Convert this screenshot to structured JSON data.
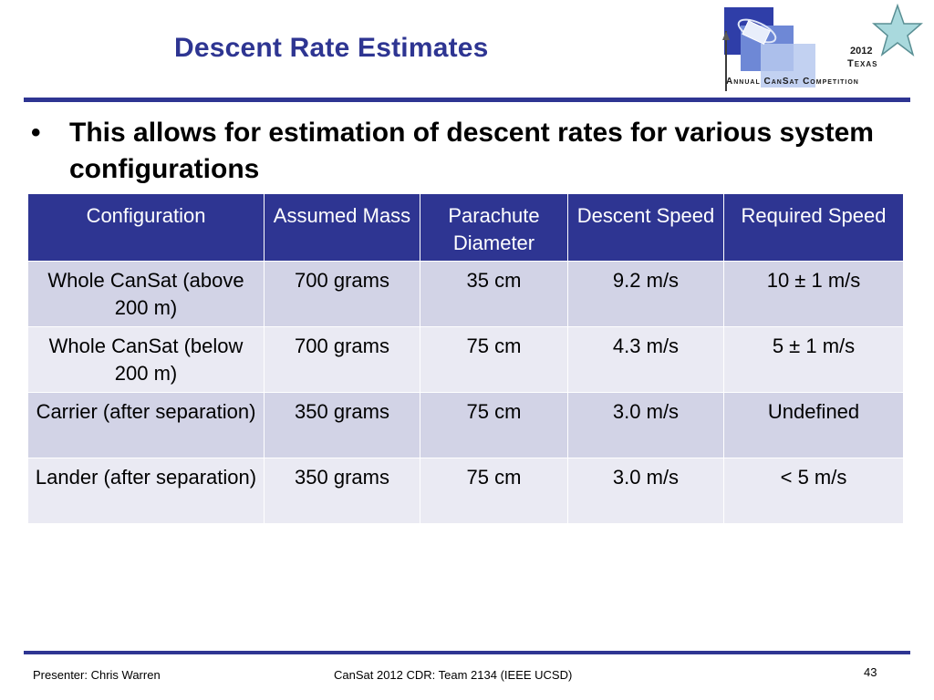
{
  "slide": {
    "title": "Descent Rate Estimates",
    "bullet_symbol": "•",
    "bullet": "This allows for estimation of descent rates for various system configurations"
  },
  "logo": {
    "year": "2012",
    "state": "Texas",
    "competition": "Annual CanSat Competition"
  },
  "table": {
    "headers": [
      "Configuration",
      "Assumed Mass",
      "Parachute Diameter",
      "Descent Speed",
      "Required Speed"
    ],
    "rows": [
      [
        "Whole CanSat (above 200 m)",
        "700 grams",
        "35 cm",
        "9.2 m/s",
        "10 ± 1 m/s"
      ],
      [
        "Whole CanSat (below 200 m)",
        "700 grams",
        "75 cm",
        "4.3 m/s",
        "5 ± 1 m/s"
      ],
      [
        "Carrier (after separation)",
        "350 grams",
        "75 cm",
        "3.0 m/s",
        "Undefined"
      ],
      [
        "Lander (after separation)",
        "350 grams",
        "75 cm",
        "3.0 m/s",
        "< 5 m/s"
      ]
    ]
  },
  "footer": {
    "presenter": "Presenter:  Chris Warren",
    "center": "CanSat 2012 CDR:  Team 2134 (IEEE UCSD)",
    "page_number": "43"
  },
  "colors": {
    "accent": "#2e3592",
    "row_dark": "#d2d3e6",
    "row_light": "#eaeaf3"
  }
}
